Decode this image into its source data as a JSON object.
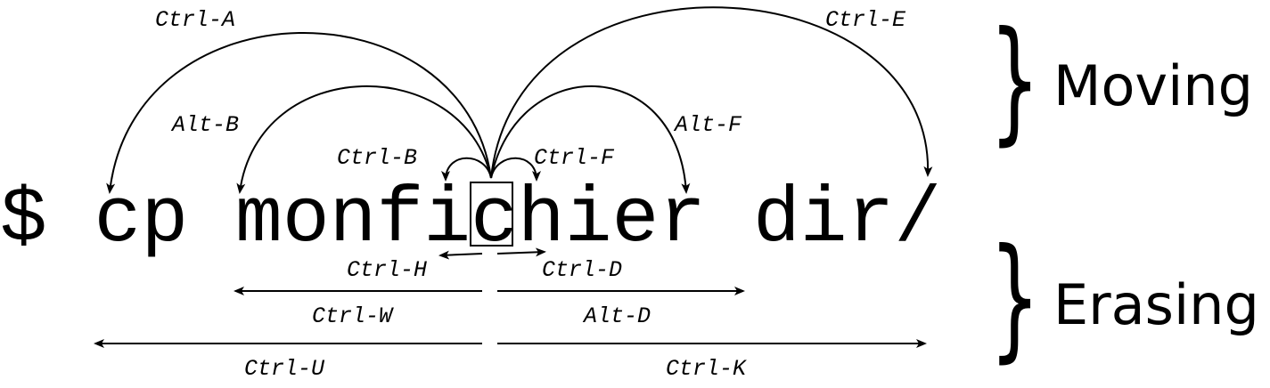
{
  "command": {
    "prompt": "$",
    "before_cursor": "cp monfichier",
    "text_before": " cp monfi",
    "cursor_char": "c",
    "text_after": "hier dir/"
  },
  "sections": {
    "moving": "Moving",
    "erasing": "Erasing"
  },
  "moving_keys": {
    "ctrl_a": "Ctrl-A",
    "ctrl_e": "Ctrl-E",
    "alt_b": "Alt-B",
    "alt_f": "Alt-F",
    "ctrl_b": "Ctrl-B",
    "ctrl_f": "Ctrl-F"
  },
  "erasing_keys": {
    "ctrl_h": "Ctrl-H",
    "ctrl_d": "Ctrl-D",
    "ctrl_w": "Ctrl-W",
    "alt_d": "Alt-D",
    "ctrl_u": "Ctrl-U",
    "ctrl_k": "Ctrl-K"
  }
}
